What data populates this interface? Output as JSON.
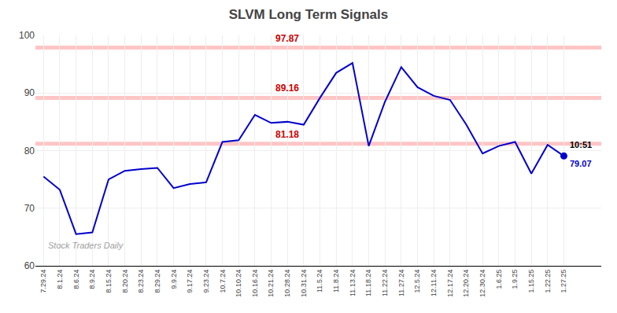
{
  "chart_data": {
    "type": "line",
    "title": "SLVM Long Term Signals",
    "categories": [
      "7.29.24",
      "8.1.24",
      "8.6.24",
      "8.9.24",
      "8.15.24",
      "8.20.24",
      "8.23.24",
      "8.29.24",
      "9.9.24",
      "9.17.24",
      "9.23.24",
      "10.7.24",
      "10.10.24",
      "10.16.24",
      "10.21.24",
      "10.28.24",
      "10.31.24",
      "11.5.24",
      "11.8.24",
      "11.13.24",
      "11.18.24",
      "11.22.24",
      "11.27.24",
      "12.5.24",
      "12.11.24",
      "12.17.24",
      "12.20.24",
      "12.30.24",
      "1.6.25",
      "1.9.25",
      "1.15.25",
      "1.22.25",
      "1.27.25"
    ],
    "values": [
      75.5,
      73.2,
      65.5,
      65.8,
      75.0,
      76.5,
      76.8,
      77.0,
      73.5,
      74.2,
      74.5,
      81.5,
      81.8,
      86.2,
      84.8,
      85.0,
      84.5,
      89.16,
      93.5,
      95.2,
      80.8,
      88.5,
      94.5,
      91.0,
      89.5,
      88.8,
      84.5,
      79.5,
      80.8,
      81.5,
      76.0,
      81.0,
      79.07
    ],
    "color": "#0000cc",
    "ylim": [
      60,
      100
    ],
    "yticks": [
      60,
      70,
      80,
      90,
      100
    ],
    "grid": true,
    "signal_lines": [
      {
        "y": 97.87,
        "label": "97.87",
        "color": "#ffbbbb",
        "label_color": "#cc0000"
      },
      {
        "y": 89.16,
        "label": "89.16",
        "color": "#ffbbbb",
        "label_color": "#cc0000"
      },
      {
        "y": 81.18,
        "label": "81.18",
        "color": "#ffbbbb",
        "label_color": "#cc0000"
      }
    ],
    "annotations": [
      {
        "text": "10:51",
        "color": "#000000"
      },
      {
        "text": "79.07",
        "color": "#0000cc"
      }
    ],
    "watermark": {
      "text": "Stock Traders Daily",
      "color": "#888888"
    }
  }
}
